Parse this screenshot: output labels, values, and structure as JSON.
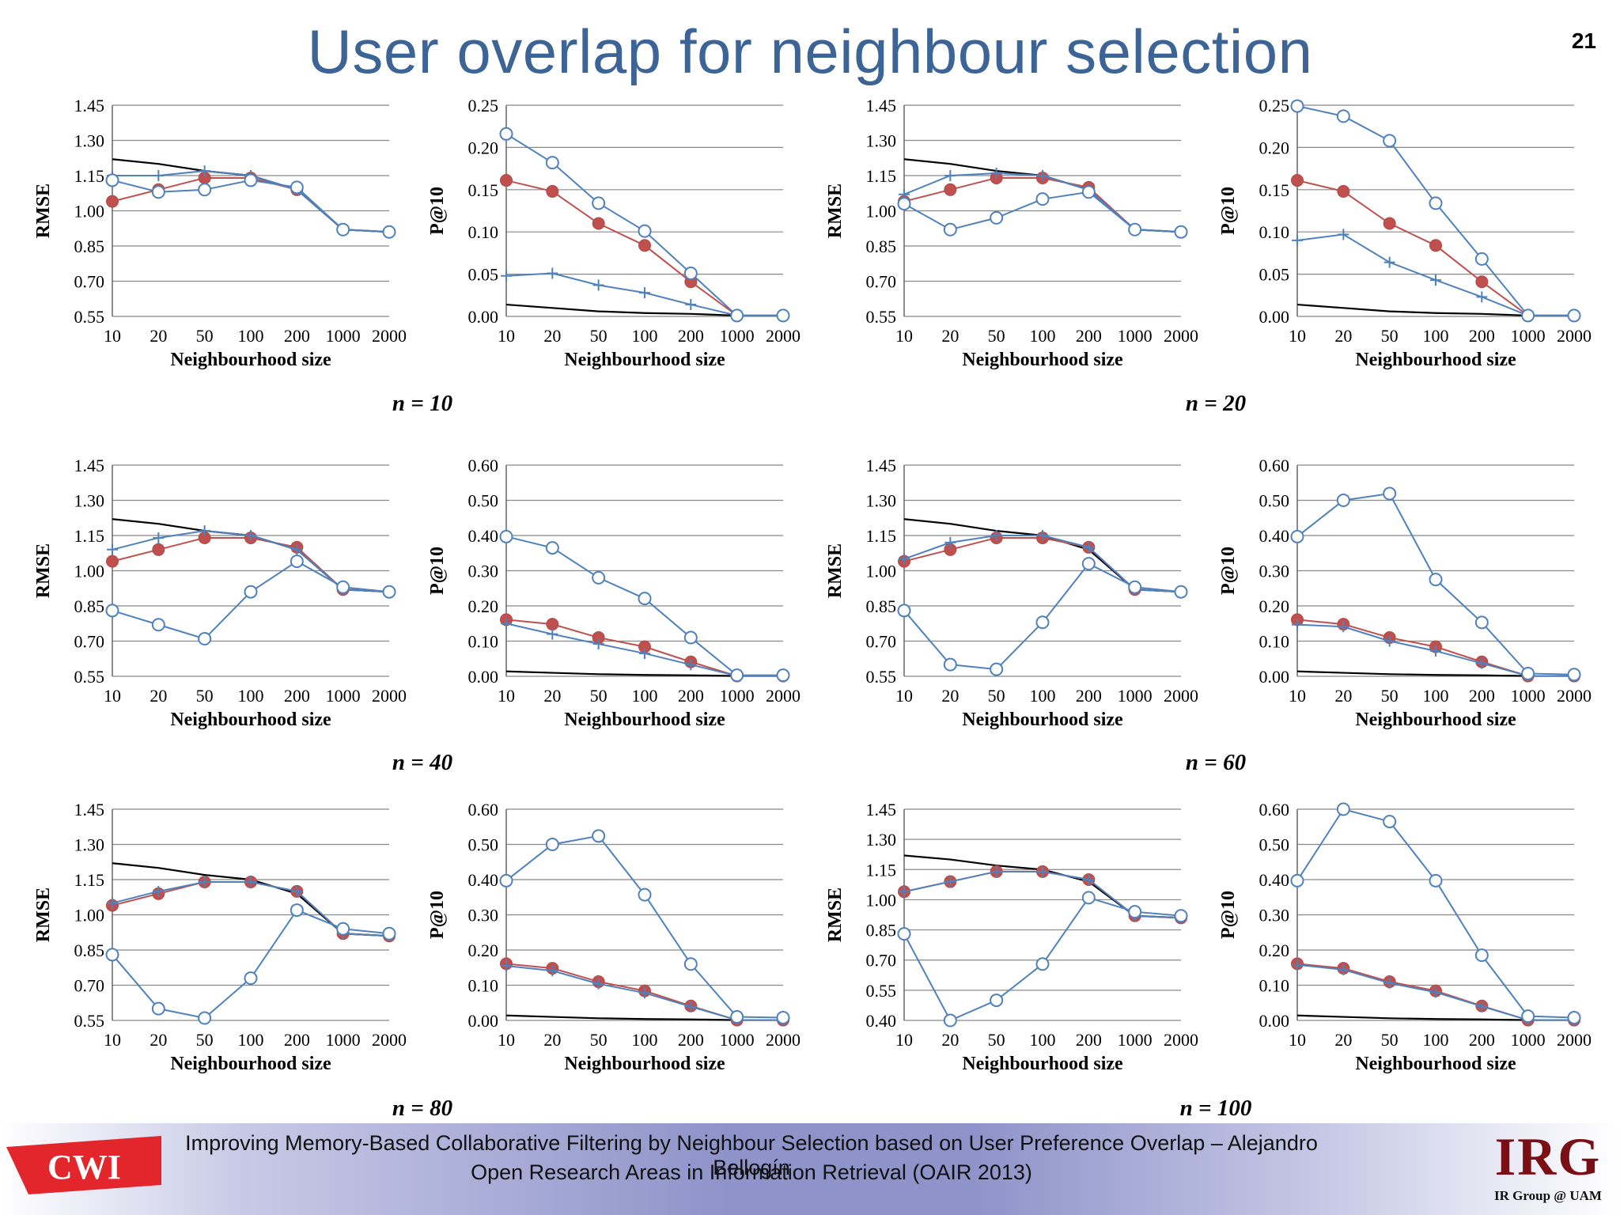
{
  "title": "User overlap for neighbour selection",
  "page_number": "21",
  "footer": {
    "line1": "Improving Memory-Based Collaborative Filtering by Neighbour Selection based on User Preference Overlap  – Alejandro Bellogín",
    "line2": "Open Research Areas in Information Retrieval (OAIR 2013)",
    "left_logo_text": "CWI",
    "right_logo_text": "IRG",
    "right_logo_subtext": "IR Group @ UAM"
  },
  "colors": {
    "title": "#3c6496",
    "black_series": "#000000",
    "red_series": "#c0504d",
    "blue_series": "#4f81bd",
    "grid": "#888888"
  },
  "groups": [
    {
      "label": "n = 10"
    },
    {
      "label": "n = 20"
    },
    {
      "label": "n = 40"
    },
    {
      "label": "n = 60"
    },
    {
      "label": "n = 80"
    },
    {
      "label": "n = 100"
    }
  ],
  "chart_data": [
    {
      "type": "line",
      "group": "n = 10",
      "xlabel": "Neighbourhood size",
      "ylabel": "RMSE",
      "categories": [
        "10",
        "20",
        "50",
        "100",
        "200",
        "1000",
        "2000"
      ],
      "ylim": [
        0.55,
        1.45
      ],
      "yticks": [
        "0.55",
        "0.70",
        "0.85",
        "1.00",
        "1.15",
        "1.30",
        "1.45"
      ],
      "grid": true,
      "series": [
        {
          "style": "plain-black",
          "values": [
            1.22,
            1.2,
            1.17,
            1.15,
            1.09,
            0.92,
            0.91
          ]
        },
        {
          "style": "red-filled-circle",
          "values": [
            1.04,
            1.09,
            1.14,
            1.14,
            1.09,
            0.92,
            0.91
          ]
        },
        {
          "style": "blue-plus",
          "values": [
            1.15,
            1.15,
            1.17,
            1.15,
            1.09,
            0.92,
            0.91
          ]
        },
        {
          "style": "blue-open-circle",
          "values": [
            1.13,
            1.08,
            1.09,
            1.13,
            1.1,
            0.92,
            0.91
          ]
        }
      ]
    },
    {
      "type": "line",
      "group": "n = 10",
      "xlabel": "Neighbourhood size",
      "ylabel": "P@10",
      "categories": [
        "10",
        "20",
        "50",
        "100",
        "200",
        "1000",
        "2000"
      ],
      "ylim": [
        0,
        0.25
      ],
      "yticks": [
        "0.00",
        "0.05",
        "0.10",
        "0.15",
        "0.20",
        "0.25"
      ],
      "grid": true,
      "series": [
        {
          "style": "plain-black",
          "values": [
            0.014,
            0.01,
            0.006,
            0.004,
            0.003,
            0.001,
            0.001
          ]
        },
        {
          "style": "red-filled-circle",
          "values": [
            0.161,
            0.148,
            0.11,
            0.084,
            0.041,
            0.001,
            0.001
          ]
        },
        {
          "style": "blue-plus",
          "values": [
            0.048,
            0.051,
            0.037,
            0.028,
            0.014,
            0.001,
            0.001
          ]
        },
        {
          "style": "blue-open-circle",
          "values": [
            0.216,
            0.182,
            0.134,
            0.101,
            0.051,
            0.001,
            0.001
          ]
        }
      ]
    },
    {
      "type": "line",
      "group": "n = 20",
      "xlabel": "Neighbourhood size",
      "ylabel": "RMSE",
      "categories": [
        "10",
        "20",
        "50",
        "100",
        "200",
        "1000",
        "2000"
      ],
      "ylim": [
        0.55,
        1.45
      ],
      "yticks": [
        "0.55",
        "0.70",
        "0.85",
        "1.00",
        "1.15",
        "1.30",
        "1.45"
      ],
      "grid": true,
      "series": [
        {
          "style": "plain-black",
          "values": [
            1.22,
            1.2,
            1.17,
            1.15,
            1.09,
            0.92,
            0.91
          ]
        },
        {
          "style": "red-filled-circle",
          "values": [
            1.04,
            1.09,
            1.14,
            1.14,
            1.1,
            0.92,
            0.91
          ]
        },
        {
          "style": "blue-plus",
          "values": [
            1.07,
            1.15,
            1.16,
            1.15,
            1.09,
            0.92,
            0.91
          ]
        },
        {
          "style": "blue-open-circle",
          "values": [
            1.03,
            0.92,
            0.97,
            1.05,
            1.08,
            0.92,
            0.91
          ]
        }
      ]
    },
    {
      "type": "line",
      "group": "n = 20",
      "xlabel": "Neighbourhood size",
      "ylabel": "P@10",
      "categories": [
        "10",
        "20",
        "50",
        "100",
        "200",
        "1000",
        "2000"
      ],
      "ylim": [
        0,
        0.25
      ],
      "yticks": [
        "0.00",
        "0.05",
        "0.10",
        "0.15",
        "0.20",
        "0.25"
      ],
      "grid": true,
      "series": [
        {
          "style": "plain-black",
          "values": [
            0.014,
            0.01,
            0.006,
            0.004,
            0.003,
            0.001,
            0.001
          ]
        },
        {
          "style": "red-filled-circle",
          "values": [
            0.161,
            0.148,
            0.11,
            0.084,
            0.041,
            0.001,
            0.001
          ]
        },
        {
          "style": "blue-plus",
          "values": [
            0.09,
            0.097,
            0.064,
            0.043,
            0.023,
            0.001,
            0.001
          ]
        },
        {
          "style": "blue-open-circle",
          "values": [
            0.249,
            0.237,
            0.208,
            0.134,
            0.068,
            0.001,
            0.001
          ]
        }
      ]
    },
    {
      "type": "line",
      "group": "n = 40",
      "xlabel": "Neighbourhood size",
      "ylabel": "RMSE",
      "categories": [
        "10",
        "20",
        "50",
        "100",
        "200",
        "1000",
        "2000"
      ],
      "ylim": [
        0.55,
        1.45
      ],
      "yticks": [
        "0.55",
        "0.70",
        "0.85",
        "1.00",
        "1.15",
        "1.30",
        "1.45"
      ],
      "grid": true,
      "series": [
        {
          "style": "plain-black",
          "values": [
            1.22,
            1.2,
            1.17,
            1.15,
            1.09,
            0.92,
            0.91
          ]
        },
        {
          "style": "red-filled-circle",
          "values": [
            1.04,
            1.09,
            1.14,
            1.14,
            1.1,
            0.92,
            0.91
          ]
        },
        {
          "style": "blue-plus",
          "values": [
            1.09,
            1.14,
            1.17,
            1.15,
            1.09,
            0.92,
            0.91
          ]
        },
        {
          "style": "blue-open-circle",
          "values": [
            0.83,
            0.77,
            0.71,
            0.91,
            1.04,
            0.93,
            0.91
          ]
        }
      ]
    },
    {
      "type": "line",
      "group": "n = 40",
      "xlabel": "Neighbourhood size",
      "ylabel": "P@10",
      "categories": [
        "10",
        "20",
        "50",
        "100",
        "200",
        "1000",
        "2000"
      ],
      "ylim": [
        0,
        0.6
      ],
      "yticks": [
        "0.00",
        "0.10",
        "0.20",
        "0.30",
        "0.40",
        "0.50",
        "0.60"
      ],
      "grid": true,
      "series": [
        {
          "style": "plain-black",
          "values": [
            0.014,
            0.01,
            0.006,
            0.004,
            0.003,
            0.001,
            0.001
          ]
        },
        {
          "style": "red-filled-circle",
          "values": [
            0.161,
            0.148,
            0.11,
            0.084,
            0.041,
            0.001,
            0.001
          ]
        },
        {
          "style": "blue-plus",
          "values": [
            0.15,
            0.12,
            0.092,
            0.065,
            0.033,
            0.001,
            0.001
          ]
        },
        {
          "style": "blue-open-circle",
          "values": [
            0.397,
            0.365,
            0.28,
            0.221,
            0.11,
            0.003,
            0.003
          ]
        }
      ]
    },
    {
      "type": "line",
      "group": "n = 60",
      "xlabel": "Neighbourhood size",
      "ylabel": "RMSE",
      "categories": [
        "10",
        "20",
        "50",
        "100",
        "200",
        "1000",
        "2000"
      ],
      "ylim": [
        0.55,
        1.45
      ],
      "yticks": [
        "0.55",
        "0.70",
        "0.85",
        "1.00",
        "1.15",
        "1.30",
        "1.45"
      ],
      "grid": true,
      "series": [
        {
          "style": "plain-black",
          "values": [
            1.22,
            1.2,
            1.17,
            1.15,
            1.09,
            0.92,
            0.91
          ]
        },
        {
          "style": "red-filled-circle",
          "values": [
            1.04,
            1.09,
            1.14,
            1.14,
            1.1,
            0.92,
            0.91
          ]
        },
        {
          "style": "blue-plus",
          "values": [
            1.05,
            1.12,
            1.15,
            1.15,
            1.1,
            0.92,
            0.91
          ]
        },
        {
          "style": "blue-open-circle",
          "values": [
            0.83,
            0.6,
            0.58,
            0.78,
            1.03,
            0.93,
            0.91
          ]
        }
      ]
    },
    {
      "type": "line",
      "group": "n = 60",
      "xlabel": "Neighbourhood size",
      "ylabel": "P@10",
      "categories": [
        "10",
        "20",
        "50",
        "100",
        "200",
        "1000",
        "2000"
      ],
      "ylim": [
        0,
        0.6
      ],
      "yticks": [
        "0.00",
        "0.10",
        "0.20",
        "0.30",
        "0.40",
        "0.50",
        "0.60"
      ],
      "grid": true,
      "series": [
        {
          "style": "plain-black",
          "values": [
            0.014,
            0.01,
            0.006,
            0.004,
            0.003,
            0.001,
            0.001
          ]
        },
        {
          "style": "red-filled-circle",
          "values": [
            0.161,
            0.148,
            0.11,
            0.084,
            0.041,
            0.001,
            0.001
          ]
        },
        {
          "style": "blue-plus",
          "values": [
            0.147,
            0.141,
            0.1,
            0.072,
            0.037,
            0.001,
            0.001
          ]
        },
        {
          "style": "blue-open-circle",
          "values": [
            0.397,
            0.5,
            0.519,
            0.275,
            0.153,
            0.008,
            0.005
          ]
        }
      ]
    },
    {
      "type": "line",
      "group": "n = 80",
      "xlabel": "Neighbourhood size",
      "ylabel": "RMSE",
      "categories": [
        "10",
        "20",
        "50",
        "100",
        "200",
        "1000",
        "2000"
      ],
      "ylim": [
        0.55,
        1.45
      ],
      "yticks": [
        "0.55",
        "0.70",
        "0.85",
        "1.00",
        "1.15",
        "1.30",
        "1.45"
      ],
      "grid": true,
      "series": [
        {
          "style": "plain-black",
          "values": [
            1.22,
            1.2,
            1.17,
            1.15,
            1.09,
            0.92,
            0.91
          ]
        },
        {
          "style": "red-filled-circle",
          "values": [
            1.04,
            1.09,
            1.14,
            1.14,
            1.1,
            0.92,
            0.91
          ]
        },
        {
          "style": "blue-plus",
          "values": [
            1.05,
            1.1,
            1.14,
            1.14,
            1.1,
            0.92,
            0.91
          ]
        },
        {
          "style": "blue-open-circle",
          "values": [
            0.83,
            0.6,
            0.56,
            0.73,
            1.02,
            0.94,
            0.92
          ]
        }
      ]
    },
    {
      "type": "line",
      "group": "n = 80",
      "xlabel": "Neighbourhood size",
      "ylabel": "P@10",
      "categories": [
        "10",
        "20",
        "50",
        "100",
        "200",
        "1000",
        "2000"
      ],
      "ylim": [
        0,
        0.6
      ],
      "yticks": [
        "0.00",
        "0.10",
        "0.20",
        "0.30",
        "0.40",
        "0.50",
        "0.60"
      ],
      "grid": true,
      "series": [
        {
          "style": "plain-black",
          "values": [
            0.014,
            0.01,
            0.006,
            0.004,
            0.003,
            0.001,
            0.001
          ]
        },
        {
          "style": "red-filled-circle",
          "values": [
            0.161,
            0.148,
            0.11,
            0.084,
            0.041,
            0.001,
            0.001
          ]
        },
        {
          "style": "blue-plus",
          "values": [
            0.155,
            0.141,
            0.104,
            0.078,
            0.039,
            0.001,
            0.001
          ]
        },
        {
          "style": "blue-open-circle",
          "values": [
            0.397,
            0.5,
            0.524,
            0.357,
            0.16,
            0.01,
            0.008
          ]
        }
      ]
    },
    {
      "type": "line",
      "group": "n = 100",
      "xlabel": "Neighbourhood size",
      "ylabel": "RMSE",
      "categories": [
        "10",
        "20",
        "50",
        "100",
        "200",
        "1000",
        "2000"
      ],
      "ylim": [
        0.4,
        1.45
      ],
      "yticks": [
        "0.40",
        "0.55",
        "0.70",
        "0.85",
        "1.00",
        "1.15",
        "1.30",
        "1.45"
      ],
      "grid": true,
      "series": [
        {
          "style": "plain-black",
          "values": [
            1.22,
            1.2,
            1.17,
            1.15,
            1.09,
            0.92,
            0.91
          ]
        },
        {
          "style": "red-filled-circle",
          "values": [
            1.04,
            1.09,
            1.14,
            1.14,
            1.1,
            0.92,
            0.91
          ]
        },
        {
          "style": "blue-plus",
          "values": [
            1.04,
            1.09,
            1.14,
            1.14,
            1.1,
            0.92,
            0.91
          ]
        },
        {
          "style": "blue-open-circle",
          "values": [
            0.83,
            0.4,
            0.5,
            0.68,
            1.01,
            0.94,
            0.92
          ]
        }
      ]
    },
    {
      "type": "line",
      "group": "n = 100",
      "xlabel": "Neighbourhood size",
      "ylabel": "P@10",
      "categories": [
        "10",
        "20",
        "50",
        "100",
        "200",
        "1000",
        "2000"
      ],
      "ylim": [
        0,
        0.6
      ],
      "yticks": [
        "0.00",
        "0.10",
        "0.20",
        "0.30",
        "0.40",
        "0.50",
        "0.60"
      ],
      "grid": true,
      "series": [
        {
          "style": "plain-black",
          "values": [
            0.014,
            0.01,
            0.006,
            0.004,
            0.003,
            0.001,
            0.001
          ]
        },
        {
          "style": "red-filled-circle",
          "values": [
            0.161,
            0.148,
            0.11,
            0.084,
            0.041,
            0.001,
            0.001
          ]
        },
        {
          "style": "blue-plus",
          "values": [
            0.158,
            0.144,
            0.106,
            0.08,
            0.04,
            0.001,
            0.001
          ]
        },
        {
          "style": "blue-open-circle",
          "values": [
            0.397,
            0.6,
            0.565,
            0.397,
            0.185,
            0.012,
            0.008
          ]
        }
      ]
    }
  ]
}
